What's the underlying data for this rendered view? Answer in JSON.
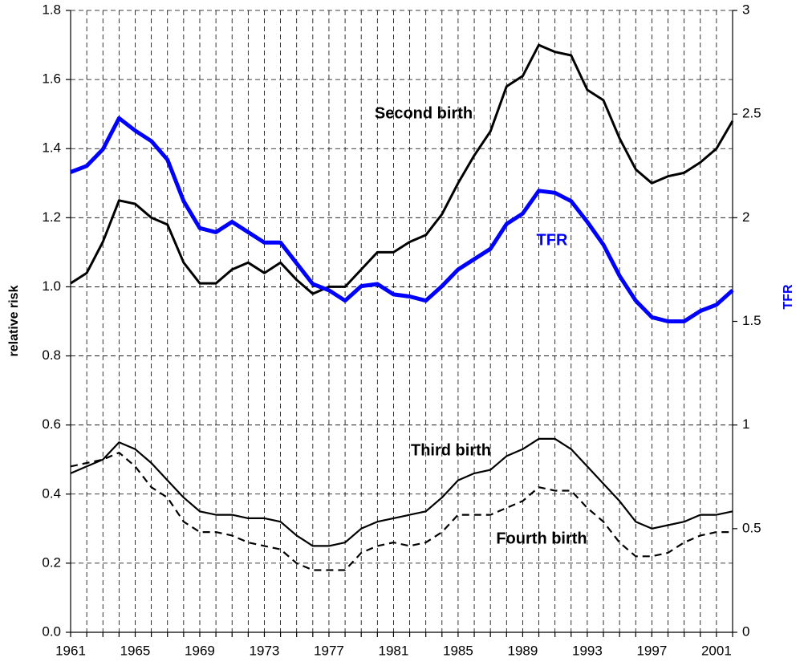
{
  "chart_data": {
    "type": "line",
    "x": [
      1961,
      1962,
      1963,
      1964,
      1965,
      1966,
      1967,
      1968,
      1969,
      1970,
      1971,
      1972,
      1973,
      1974,
      1975,
      1976,
      1977,
      1978,
      1979,
      1980,
      1981,
      1982,
      1983,
      1984,
      1985,
      1986,
      1987,
      1988,
      1989,
      1990,
      1991,
      1992,
      1993,
      1994,
      1995,
      1996,
      1997,
      1998,
      1999,
      2000,
      2001,
      2002
    ],
    "xlim": [
      1961,
      2002
    ],
    "xticks": [
      1961,
      1965,
      1969,
      1973,
      1977,
      1981,
      1985,
      1989,
      1993,
      1997,
      2001
    ],
    "ylabel": "relative risk",
    "y2label": "TFR",
    "y2label_color": "#0000ff",
    "ylim": [
      0,
      1.8
    ],
    "yticks": [
      {
        "value": 0,
        "label": "0.0"
      },
      0.2,
      0.4,
      0.6,
      0.8,
      {
        "value": 1,
        "label": "1.0"
      },
      1.2,
      1.4,
      1.6,
      1.8
    ],
    "y2lim": [
      0,
      3
    ],
    "y2ticks": [
      0,
      0.5,
      1,
      1.5,
      2,
      2.5,
      3
    ],
    "grid": true,
    "series": [
      {
        "name": "Second birth",
        "color": "#000000",
        "line_width": 3,
        "values": [
          1.01,
          1.04,
          1.13,
          1.25,
          1.24,
          1.2,
          1.18,
          1.07,
          1.01,
          1.01,
          1.05,
          1.07,
          1.04,
          1.07,
          1.02,
          0.98,
          1.0,
          1.0,
          1.05,
          1.1,
          1.1,
          1.13,
          1.15,
          1.21,
          1.3,
          1.38,
          1.45,
          1.58,
          1.61,
          1.7,
          1.68,
          1.67,
          1.57,
          1.54,
          1.43,
          1.34,
          1.3,
          1.32,
          1.33,
          1.36,
          1.4,
          1.48
        ]
      },
      {
        "name": "TFR",
        "color": "#0000ff",
        "line_width": 5,
        "axis": "y2",
        "values": [
          2.22,
          2.25,
          2.33,
          2.48,
          2.42,
          2.37,
          2.28,
          2.08,
          1.95,
          1.93,
          1.98,
          1.93,
          1.88,
          1.88,
          1.78,
          1.68,
          1.65,
          1.6,
          1.67,
          1.68,
          1.63,
          1.62,
          1.6,
          1.67,
          1.75,
          1.8,
          1.85,
          1.97,
          2.02,
          2.13,
          2.12,
          2.08,
          1.98,
          1.87,
          1.72,
          1.6,
          1.52,
          1.5,
          1.5,
          1.55,
          1.58,
          1.65
        ]
      },
      {
        "name": "Third birth",
        "color": "#000000",
        "line_width": 2.2,
        "values": [
          0.46,
          0.48,
          0.5,
          0.55,
          0.53,
          0.49,
          0.44,
          0.39,
          0.35,
          0.34,
          0.34,
          0.33,
          0.33,
          0.32,
          0.28,
          0.25,
          0.25,
          0.26,
          0.3,
          0.32,
          0.33,
          0.34,
          0.35,
          0.39,
          0.44,
          0.46,
          0.47,
          0.51,
          0.53,
          0.56,
          0.56,
          0.53,
          0.48,
          0.43,
          0.38,
          0.32,
          0.3,
          0.31,
          0.32,
          0.34,
          0.34,
          0.35
        ]
      },
      {
        "name": "Fourth birth",
        "color": "#000000",
        "line_width": 2.2,
        "dashed": true,
        "values": [
          0.48,
          0.49,
          0.5,
          0.52,
          0.48,
          0.42,
          0.39,
          0.32,
          0.29,
          0.29,
          0.28,
          0.26,
          0.25,
          0.24,
          0.2,
          0.18,
          0.18,
          0.18,
          0.23,
          0.25,
          0.26,
          0.25,
          0.26,
          0.29,
          0.34,
          0.34,
          0.34,
          0.36,
          0.38,
          0.42,
          0.41,
          0.41,
          0.36,
          0.32,
          0.26,
          0.22,
          0.22,
          0.23,
          0.26,
          0.28,
          0.29,
          0.29
        ]
      }
    ]
  }
}
